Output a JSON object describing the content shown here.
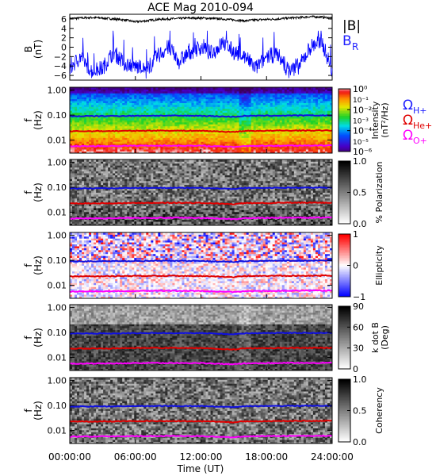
{
  "title": "ACE Mag 2010-094",
  "x_tick_labels": [
    "00:00:00",
    "06:00:00",
    "12:00:00",
    "18:00:00",
    "24:00:00"
  ],
  "x_label": "Time (UT)",
  "freq_axis": {
    "label_top": "f",
    "label_bottom": "(Hz)",
    "ticks": [
      "1.00",
      "0.10",
      "0.01"
    ]
  },
  "colors": {
    "B_total": "#000000",
    "B_R": "#0000ff",
    "H_plus": "#1010e0",
    "He_plus": "#e00000",
    "O_plus": "#ff00ff"
  },
  "legend": {
    "mag": [
      {
        "text": "|B|",
        "color": "#000000"
      },
      {
        "text": "B",
        "sub": "R",
        "color": "#2020ff"
      }
    ],
    "gyro": [
      {
        "text": "Ω",
        "sub": "H+",
        "color": "#2020ff"
      },
      {
        "text": "Ω",
        "sub": "He+",
        "color": "#e00000"
      },
      {
        "text": "Ω",
        "sub": "O+",
        "color": "#ff00ff"
      }
    ]
  },
  "chart_data": [
    {
      "type": "line",
      "panel": "magnetic field",
      "ylabel_top": "B",
      "ylabel_bottom": "(nT)",
      "y_ticks": [
        "6",
        "4",
        "2",
        "0",
        "−2",
        "−4",
        "−6"
      ],
      "ylim": [
        -7,
        7
      ],
      "xlim_hours": [
        0,
        24
      ],
      "series": [
        {
          "name": "|B|",
          "x_hours": [
            0,
            1,
            2,
            3,
            4,
            5,
            6,
            7,
            8,
            9,
            10,
            11,
            12,
            13,
            14,
            15,
            16,
            17,
            18,
            19,
            20,
            21,
            22,
            23,
            24
          ],
          "values": [
            6.1,
            6.2,
            6.3,
            6.2,
            6.0,
            5.8,
            5.4,
            5.6,
            5.9,
            6.0,
            6.1,
            6.2,
            6.2,
            6.1,
            6.0,
            5.8,
            5.6,
            5.8,
            5.9,
            6.0,
            6.2,
            6.3,
            6.5,
            6.4,
            6.2
          ]
        },
        {
          "name": "B_R",
          "x_hours": [
            0,
            1,
            2,
            3,
            4,
            5,
            6,
            7,
            8,
            9,
            10,
            11,
            12,
            13,
            14,
            15,
            16,
            17,
            18,
            19,
            20,
            21,
            22,
            23,
            24
          ],
          "values": [
            -4.5,
            -2,
            -5,
            -4.5,
            -1,
            -3.5,
            -4,
            -5,
            -2,
            0,
            -3,
            -1,
            0,
            -1.5,
            1,
            -1,
            -2,
            -4.5,
            -2,
            -1.5,
            -5,
            -4,
            0,
            1.5,
            -5
          ]
        }
      ]
    },
    {
      "type": "heatmap",
      "panel": "wave power",
      "colorbar": {
        "label": "Intensity",
        "label2": "(nT²/Hz)",
        "ticks": [
          "10⁰",
          "10⁻²",
          "10⁻⁴",
          "10⁻⁶"
        ],
        "minor_ticks": [
          "10⁻¹",
          "10⁻³",
          "10⁻⁵"
        ]
      }
    },
    {
      "type": "heatmap",
      "panel": "polarization",
      "colorbar": {
        "label": "% Polarization",
        "ticks": [
          "1.0",
          "0.5",
          "0.0"
        ]
      }
    },
    {
      "type": "heatmap",
      "panel": "ellipticity",
      "colorbar": {
        "label": "Ellipticity",
        "ticks": [
          "1",
          "0",
          "−1"
        ]
      }
    },
    {
      "type": "heatmap",
      "panel": "wave normal angle",
      "colorbar": {
        "label": "k dot B",
        "label2": "(Deg)",
        "ticks": [
          "90",
          "60",
          "30",
          "0"
        ]
      }
    },
    {
      "type": "heatmap",
      "panel": "coherence",
      "colorbar": {
        "label": "Coherency",
        "ticks": [
          "1.0",
          "0.5",
          "0.0"
        ]
      }
    },
    {
      "type": "line",
      "panel": "gyrofrequency traces",
      "x_hours": [
        0,
        4,
        8,
        12,
        15,
        16,
        20,
        24
      ],
      "series": [
        {
          "name": "Ω H+",
          "values_hz": [
            0.09,
            0.092,
            0.095,
            0.094,
            0.085,
            0.093,
            0.096,
            0.097
          ]
        },
        {
          "name": "Ω He+",
          "values_hz": [
            0.0225,
            0.023,
            0.024,
            0.0235,
            0.021,
            0.0232,
            0.024,
            0.0242
          ]
        },
        {
          "name": "Ω O+",
          "values_hz": [
            0.0056,
            0.0058,
            0.006,
            0.0059,
            0.0053,
            0.0058,
            0.006,
            0.0061
          ]
        }
      ]
    }
  ]
}
